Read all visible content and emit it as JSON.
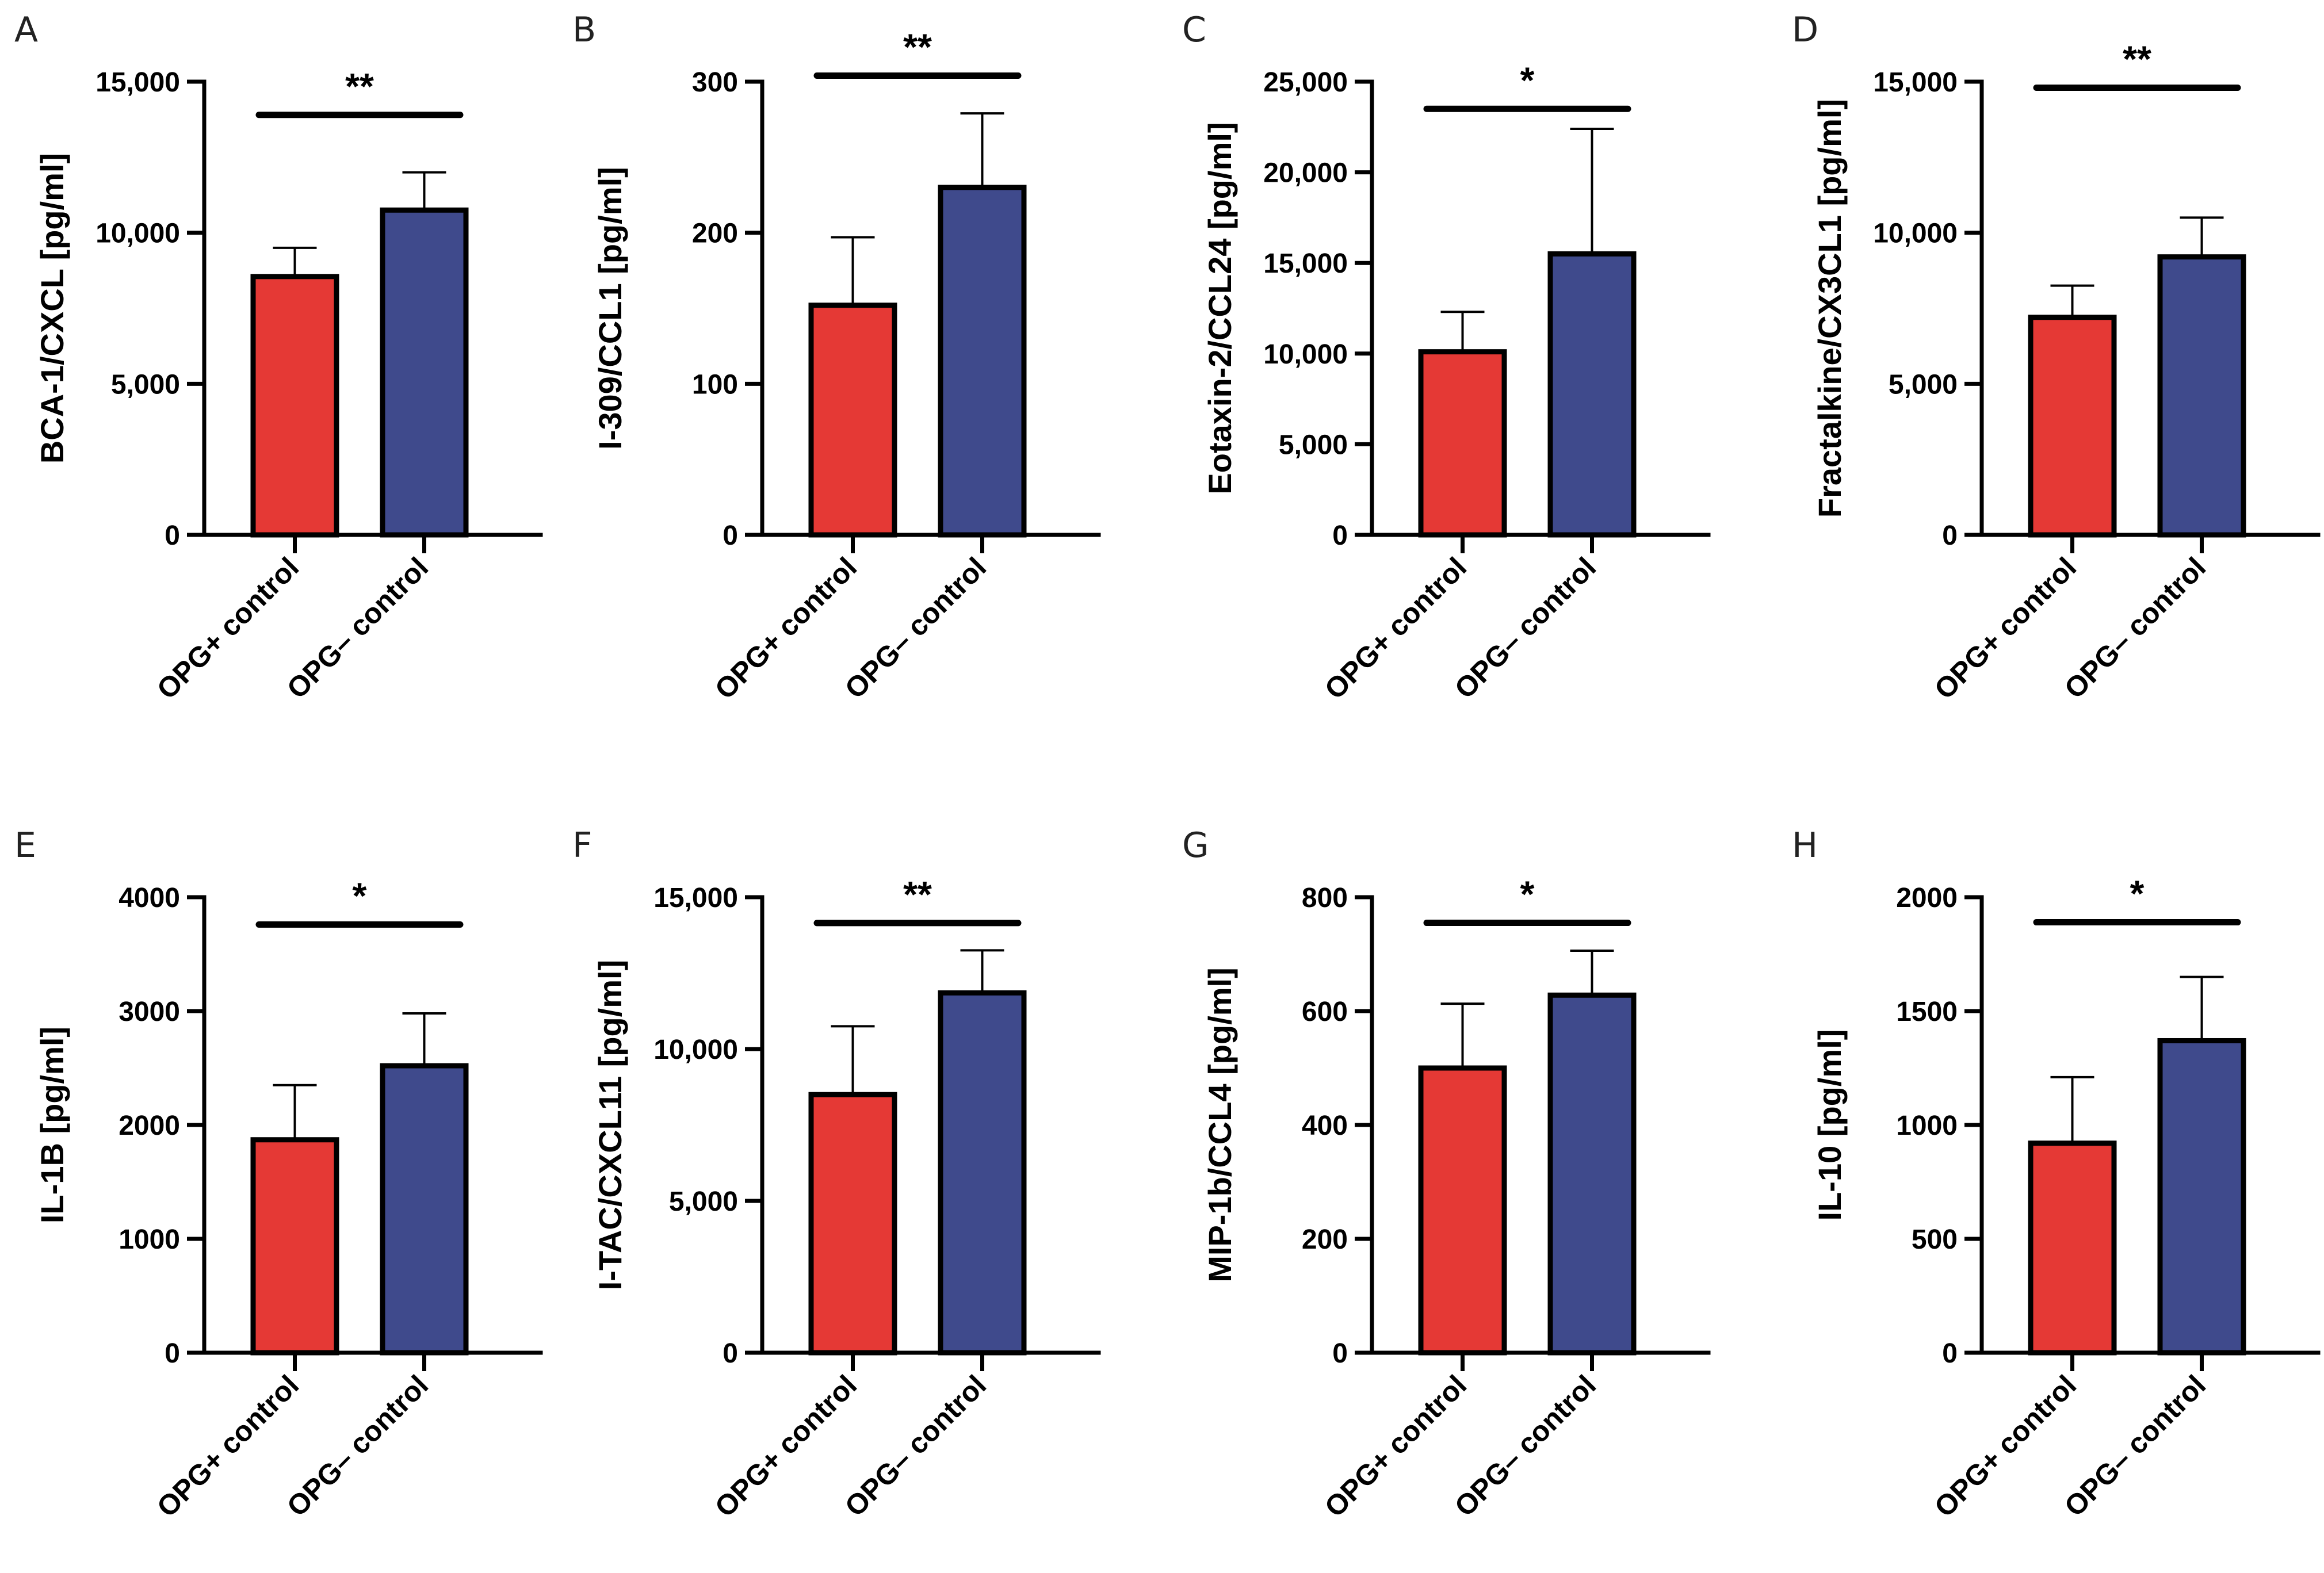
{
  "colors": {
    "opg_pos": "#E53935",
    "opg_neg": "#3F4A8C",
    "axis": "#000000"
  },
  "chart_data": [
    {
      "panel": "A",
      "type": "bar",
      "ylabel": "BCA-1/CXCL [pg/ml]",
      "categories": [
        "OPG+ control",
        "OPG– control"
      ],
      "values": [
        8550,
        10750
      ],
      "errors": [
        950,
        1250
      ],
      "ylim": [
        0,
        15000
      ],
      "yticks": [
        0,
        5000,
        10000,
        15000
      ],
      "yticklabels": [
        "0",
        "5,000",
        "10,000",
        "15,000"
      ],
      "significance": "**",
      "sig_y": 13900
    },
    {
      "panel": "B",
      "type": "bar",
      "ylabel": "I-309/CCL1 [pg/ml]",
      "categories": [
        "OPG+ control",
        "OPG– control"
      ],
      "values": [
        152,
        230
      ],
      "errors": [
        45,
        49
      ],
      "ylim": [
        0,
        300
      ],
      "yticks": [
        0,
        100,
        200,
        300
      ],
      "yticklabels": [
        "0",
        "100",
        "200",
        "300"
      ],
      "significance": "**",
      "sig_y": 304
    },
    {
      "panel": "C",
      "type": "bar",
      "ylabel": "Eotaxin-2/CCL24 [pg/ml]",
      "categories": [
        "OPG+ control",
        "OPG– control"
      ],
      "values": [
        10100,
        15500
      ],
      "errors": [
        2200,
        6900
      ],
      "ylim": [
        0,
        25000
      ],
      "yticks": [
        0,
        5000,
        10000,
        15000,
        20000,
        25000
      ],
      "yticklabels": [
        "0",
        "5,000",
        "10,000",
        "15,000",
        "20,000",
        "25,000"
      ],
      "significance": "*",
      "sig_y": 23500
    },
    {
      "panel": "D",
      "type": "bar",
      "ylabel": "Fractalkine/CX3CL1 [pg/ml]",
      "categories": [
        "OPG+ control",
        "OPG– control"
      ],
      "values": [
        7200,
        9200
      ],
      "errors": [
        1050,
        1300
      ],
      "ylim": [
        0,
        15000
      ],
      "yticks": [
        0,
        5000,
        10000,
        15000
      ],
      "yticklabels": [
        "0",
        "5,000",
        "10,000",
        "15,000"
      ],
      "significance": "**",
      "sig_y": 14800
    },
    {
      "panel": "E",
      "type": "bar",
      "ylabel": "IL-1B [pg/ml]",
      "categories": [
        "OPG+ control",
        "OPG– control"
      ],
      "values": [
        1870,
        2520
      ],
      "errors": [
        480,
        460
      ],
      "ylim": [
        0,
        4000
      ],
      "yticks": [
        0,
        1000,
        2000,
        3000,
        4000
      ],
      "yticklabels": [
        "0",
        "1000",
        "2000",
        "3000",
        "4000"
      ],
      "significance": "*",
      "sig_y": 3760
    },
    {
      "panel": "F",
      "type": "bar",
      "ylabel": "I-TAC/CXCL11 [pg/ml]",
      "categories": [
        "OPG+ control",
        "OPG– control"
      ],
      "values": [
        8500,
        11850
      ],
      "errors": [
        2250,
        1400
      ],
      "ylim": [
        0,
        15000
      ],
      "yticks": [
        0,
        5000,
        10000,
        15000
      ],
      "yticklabels": [
        "0",
        "5,000",
        "10,000",
        "15,000"
      ],
      "significance": "**",
      "sig_y": 14150
    },
    {
      "panel": "G",
      "type": "bar",
      "ylabel": "MIP-1b/CCL4 [pg/ml]",
      "categories": [
        "OPG+ control",
        "OPG– control"
      ],
      "values": [
        500,
        628
      ],
      "errors": [
        113,
        78
      ],
      "ylim": [
        0,
        800
      ],
      "yticks": [
        0,
        200,
        400,
        600,
        800
      ],
      "yticklabels": [
        "0",
        "200",
        "400",
        "600",
        "800"
      ],
      "significance": "*",
      "sig_y": 755
    },
    {
      "panel": "H",
      "type": "bar",
      "ylabel": "IL-10 [pg/ml]",
      "categories": [
        "OPG+ control",
        "OPG– control"
      ],
      "values": [
        920,
        1370
      ],
      "errors": [
        290,
        280
      ],
      "ylim": [
        0,
        2000
      ],
      "yticks": [
        0,
        500,
        1000,
        1500,
        2000
      ],
      "yticklabels": [
        "0",
        "500",
        "1000",
        "1500",
        "2000"
      ],
      "significance": "*",
      "sig_y": 1890
    }
  ]
}
